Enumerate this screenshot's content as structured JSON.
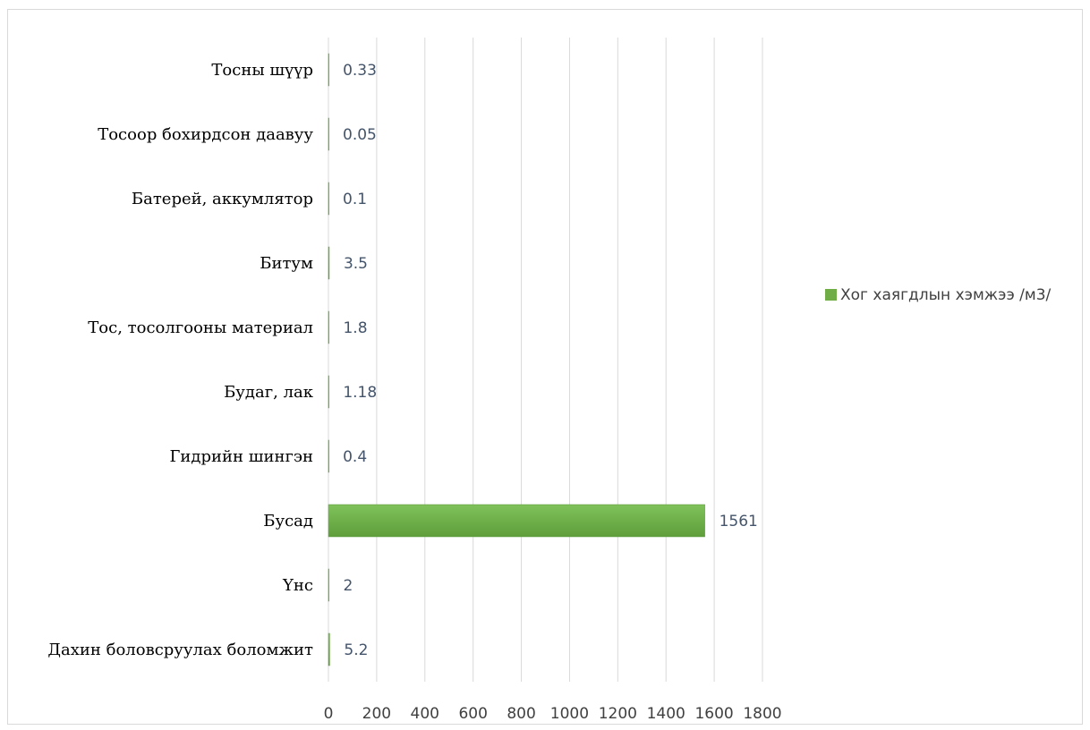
{
  "chart_data": {
    "type": "bar",
    "orientation": "horizontal",
    "title": "",
    "xlabel": "",
    "ylabel": "",
    "categories": [
      "Тосны шүүр",
      "Тосоор бохирдсон даавуу",
      "Батерей, аккумлятор",
      "Битум",
      "Тос, тосолгооны материал",
      "Будаг, лак",
      "Гидрийн шингэн",
      "Бусад",
      "Үнс",
      "Дахин боловсруулах боломжит"
    ],
    "series": [
      {
        "name": "Хог хаягдлын хэмжээ /м3/",
        "values": [
          0.33,
          0.05,
          0.1,
          3.5,
          1.8,
          1.18,
          0.4,
          1561,
          2,
          5.2
        ],
        "labels": [
          "0.33",
          "0.05",
          "0.1",
          "3.5",
          "1.8",
          "1.18",
          "0.4",
          "1561",
          "2",
          "5.2"
        ]
      }
    ],
    "xlim": [
      0,
      1800
    ],
    "xticks": [
      "0",
      "200",
      "400",
      "600",
      "800",
      "1000",
      "1200",
      "1400",
      "1600",
      "1800"
    ],
    "grid": true,
    "legend": "right",
    "colors": {
      "bar": "#70ad47",
      "bar_dark": "#5d9a3a"
    }
  }
}
